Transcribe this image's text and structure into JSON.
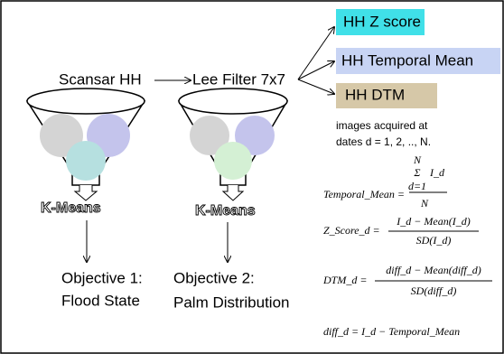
{
  "pipeline": {
    "source": "Scansar HH",
    "filter": "Lee Filter 7x7"
  },
  "products": [
    "HH Z score",
    "HH Temporal Mean",
    "HH DTM"
  ],
  "note": [
    "images acquired at",
    "dates d = 1, 2, .., N."
  ],
  "clusters": [
    {
      "method": "K-Means",
      "objective": [
        "Objective 1:",
        "Flood State"
      ]
    },
    {
      "method": "K-Means",
      "objective": [
        "Objective 2:",
        "Palm Distribution"
      ]
    }
  ],
  "formulas": [
    {
      "lhs": "Temporal_Mean =",
      "upper": "N",
      "sum": "Σ",
      "lower": "d=1",
      "numerator": "I_d",
      "denominator": "N"
    },
    {
      "lhs": "Z_Score_d =",
      "numerator": "I_d − Mean(I_d)",
      "denominator": "SD(I_d)"
    },
    {
      "lhs": "DTM_d =",
      "numerator": "diff_d − Mean(diff_d)",
      "denominator": "SD(diff_d)"
    },
    {
      "lhs": "diff_d = I_d − Temporal_Mean"
    }
  ]
}
